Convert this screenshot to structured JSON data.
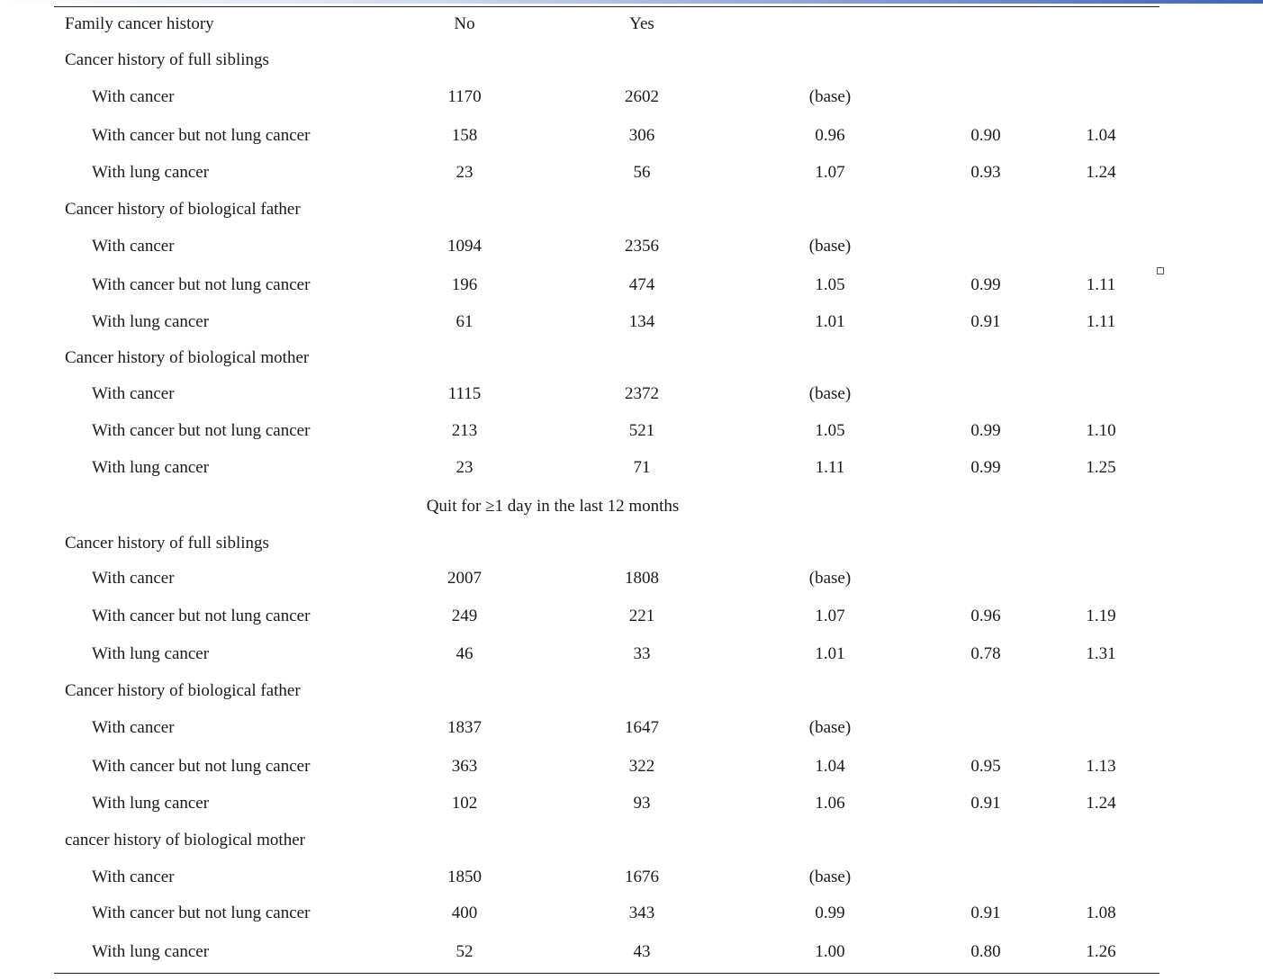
{
  "header": {
    "label": "Family cancer history",
    "col_no": "No",
    "col_yes": "Yes"
  },
  "section2_title": "Quit for ≥1 day in the last 12 months",
  "blocks": [
    {
      "title": "Cancer history of full siblings",
      "rows": [
        {
          "label": "With cancer",
          "no": "1170",
          "yes": "2602",
          "or": "(base)",
          "lo": "",
          "hi": ""
        },
        {
          "label": "With cancer but not lung cancer",
          "no": "158",
          "yes": "306",
          "or": "0.96",
          "lo": "0.90",
          "hi": "1.04"
        },
        {
          "label": "With lung cancer",
          "no": "23",
          "yes": "56",
          "or": "1.07",
          "lo": "0.93",
          "hi": "1.24"
        }
      ]
    },
    {
      "title": "Cancer history of biological father",
      "rows": [
        {
          "label": "With cancer",
          "no": "1094",
          "yes": "2356",
          "or": "(base)",
          "lo": "",
          "hi": ""
        },
        {
          "label": "With cancer but not lung cancer",
          "no": "196",
          "yes": "474",
          "or": "1.05",
          "lo": "0.99",
          "hi": "1.11"
        },
        {
          "label": "With lung cancer",
          "no": "61",
          "yes": "134",
          "or": "1.01",
          "lo": "0.91",
          "hi": "1.11"
        }
      ]
    },
    {
      "title": "Cancer history of biological mother",
      "rows": [
        {
          "label": "With cancer",
          "no": "1115",
          "yes": "2372",
          "or": "(base)",
          "lo": "",
          "hi": ""
        },
        {
          "label": "With cancer but not lung cancer",
          "no": "213",
          "yes": "521",
          "or": "1.05",
          "lo": "0.99",
          "hi": "1.10"
        },
        {
          "label": "With lung cancer",
          "no": "23",
          "yes": "71",
          "or": "1.11",
          "lo": "0.99",
          "hi": "1.25"
        }
      ]
    },
    {
      "title": "Cancer history of full siblings",
      "rows": [
        {
          "label": "With cancer",
          "no": "2007",
          "yes": "1808",
          "or": "(base)",
          "lo": "",
          "hi": ""
        },
        {
          "label": "With cancer but not lung cancer",
          "no": "249",
          "yes": "221",
          "or": "1.07",
          "lo": "0.96",
          "hi": "1.19"
        },
        {
          "label": "With lung cancer",
          "no": "46",
          "yes": "33",
          "or": "1.01",
          "lo": "0.78",
          "hi": "1.31"
        }
      ]
    },
    {
      "title": "Cancer history of biological father",
      "rows": [
        {
          "label": "With cancer",
          "no": "1837",
          "yes": "1647",
          "or": "(base)",
          "lo": "",
          "hi": ""
        },
        {
          "label": "With cancer but not lung cancer",
          "no": "363",
          "yes": "322",
          "or": "1.04",
          "lo": "0.95",
          "hi": "1.13"
        },
        {
          "label": "With lung cancer",
          "no": "102",
          "yes": "93",
          "or": "1.06",
          "lo": "0.91",
          "hi": "1.24"
        }
      ]
    },
    {
      "title": "cancer history of biological mother",
      "rows": [
        {
          "label": "With cancer",
          "no": "1850",
          "yes": "1676",
          "or": "(base)",
          "lo": "",
          "hi": ""
        },
        {
          "label": "With cancer but not lung cancer",
          "no": "400",
          "yes": "343",
          "or": "0.99",
          "lo": "0.91",
          "hi": "1.08"
        },
        {
          "label": "With lung cancer",
          "no": "52",
          "yes": "43",
          "or": "1.00",
          "lo": "0.80",
          "hi": "1.26"
        }
      ]
    }
  ]
}
